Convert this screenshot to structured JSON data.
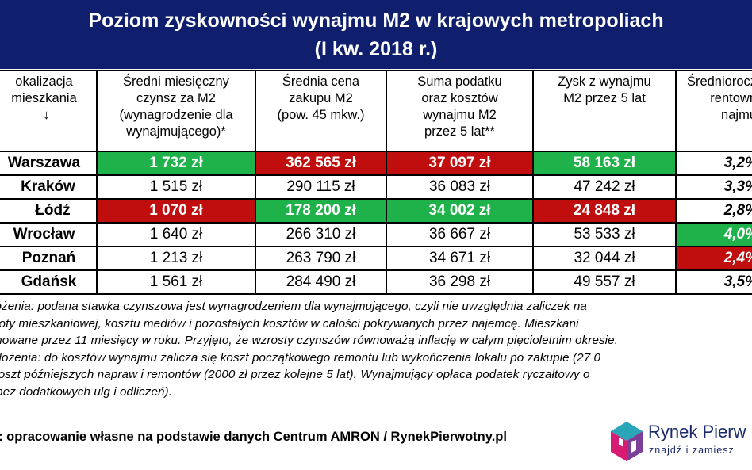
{
  "title": {
    "line1": "Poziom zyskowności wynajmu M2 w krajowych metropoliach",
    "line2": "(I kw. 2018 r.)"
  },
  "table": {
    "headers": [
      [
        "okalizacja",
        "mieszkania",
        "↓"
      ],
      [
        "Średni miesięczny",
        "czynsz za M2",
        "(wynagrodzenie dla",
        "wynajmującego)*"
      ],
      [
        "Średnia cena",
        "zakupu M2",
        "(pow. 45 mkw.)"
      ],
      [
        "Suma podatku",
        "oraz kosztów",
        "wynajmu M2",
        "przez 5 lat**"
      ],
      [
        "Zysk z wynajmu",
        "M2 przez 5 lat"
      ],
      [
        "Średniorocz",
        "rentown",
        "najmu"
      ]
    ],
    "rows": [
      {
        "city": "Warszawa",
        "rent": "1 732 zł",
        "price": "362 565 zł",
        "costs": "37 097 zł",
        "profit": "58 163 zł",
        "yield": "3,2%"
      },
      {
        "city": "Kraków",
        "rent": "1 515 zł",
        "price": "290 115 zł",
        "costs": "36 083 zł",
        "profit": "47 242 zł",
        "yield": "3,3%"
      },
      {
        "city": "Łódź",
        "rent": "1 070 zł",
        "price": "178 200 zł",
        "costs": "34 002 zł",
        "profit": "24 848 zł",
        "yield": "2,8%"
      },
      {
        "city": "Wrocław",
        "rent": "1 640 zł",
        "price": "266 310 zł",
        "costs": "36 667 zł",
        "profit": "53 533 zł",
        "yield": "4,0%"
      },
      {
        "city": "Poznań",
        "rent": "1 213 zł",
        "price": "263 790 zł",
        "costs": "34 671 zł",
        "profit": "32 044 zł",
        "yield": "2,4%"
      },
      {
        "city": "Gdańsk",
        "rent": "1 561 zł",
        "price": "284 490 zł",
        "costs": "36 298 zł",
        "profit": "49 557 zł",
        "yield": "3,5%"
      }
    ]
  },
  "notes": [
    "łożenia: podana stawka czynszowa jest wynagrodzeniem dla wynajmującego, czyli nie uwzględnia zaliczek na",
    "noty mieszkaniowej, kosztu mediów i pozostałych kosztów w całości pokrywanych przez najemcę. Mieszkani",
    "mowane przez 11 miesięcy w roku. Przyjęto, że wzrosty czynszów równoważą inflację w całym pięcioletnim okresie.",
    "ałożenia: do kosztów wynajmu zalicza się koszt początkowego remontu lub wykończenia lokalu po zakupie (27 0",
    "koszt późniejszych napraw i remontów (2000 zł przez kolejne 5 lat). Wynajmujący opłaca podatek ryczałtowy o",
    "(bez dodatkowych ulg i odliczeń)."
  ],
  "source": "o: opracowanie własne na podstawie danych Centrum AMRON / RynekPierwotny.pl",
  "logo": {
    "name": "Rynek Pierw",
    "tagline": "znajdź i zamiesz"
  },
  "colors": {
    "header_bg": "#0f1f6e",
    "highlight_green": "#1fb24a",
    "highlight_red": "#c00d0d"
  }
}
